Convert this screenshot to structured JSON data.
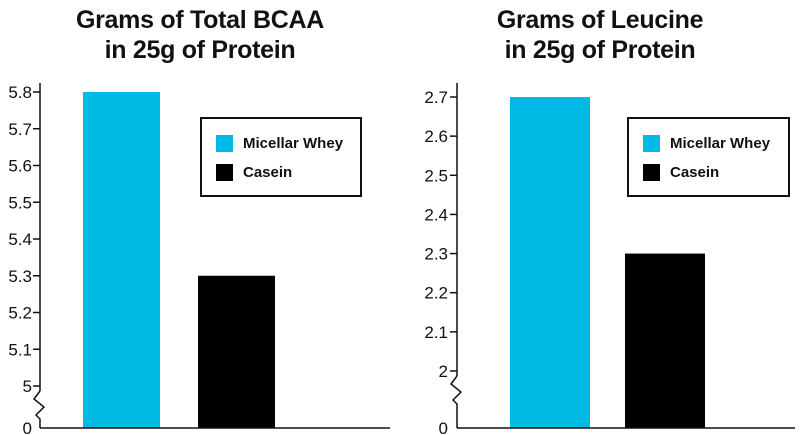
{
  "chart_data": [
    {
      "type": "bar",
      "title_lines": [
        "Grams of Total BCAA",
        "in 25g of Protein"
      ],
      "categories": [
        "Micellar Whey",
        "Casein"
      ],
      "values": [
        5.8,
        5.3
      ],
      "colors": [
        "#00b9e4",
        "#000000"
      ],
      "yticks": [
        "0",
        "5",
        "5.1",
        "5.2",
        "5.3",
        "5.4",
        "5.5",
        "5.6",
        "5.7",
        "5.8"
      ],
      "ylim": [
        5.0,
        5.8
      ],
      "axis_break": true,
      "legend": [
        {
          "label": "Micellar Whey",
          "color": "#00b9e4"
        },
        {
          "label": "Casein",
          "color": "#000000"
        }
      ],
      "legend_placement": "top-right"
    },
    {
      "type": "bar",
      "title_lines": [
        "Grams of Leucine",
        "in 25g of Protein"
      ],
      "categories": [
        "Micellar Whey",
        "Casein"
      ],
      "values": [
        2.7,
        2.3
      ],
      "colors": [
        "#00b9e4",
        "#000000"
      ],
      "yticks": [
        "0",
        "2",
        "2.1",
        "2.2",
        "2.3",
        "2.4",
        "2.5",
        "2.6",
        "2.7"
      ],
      "ylim": [
        2.0,
        2.7
      ],
      "axis_break": true,
      "legend": [
        {
          "label": "Micellar Whey",
          "color": "#00b9e4"
        },
        {
          "label": "Casein",
          "color": "#000000"
        }
      ],
      "legend_placement": "top-right"
    }
  ]
}
